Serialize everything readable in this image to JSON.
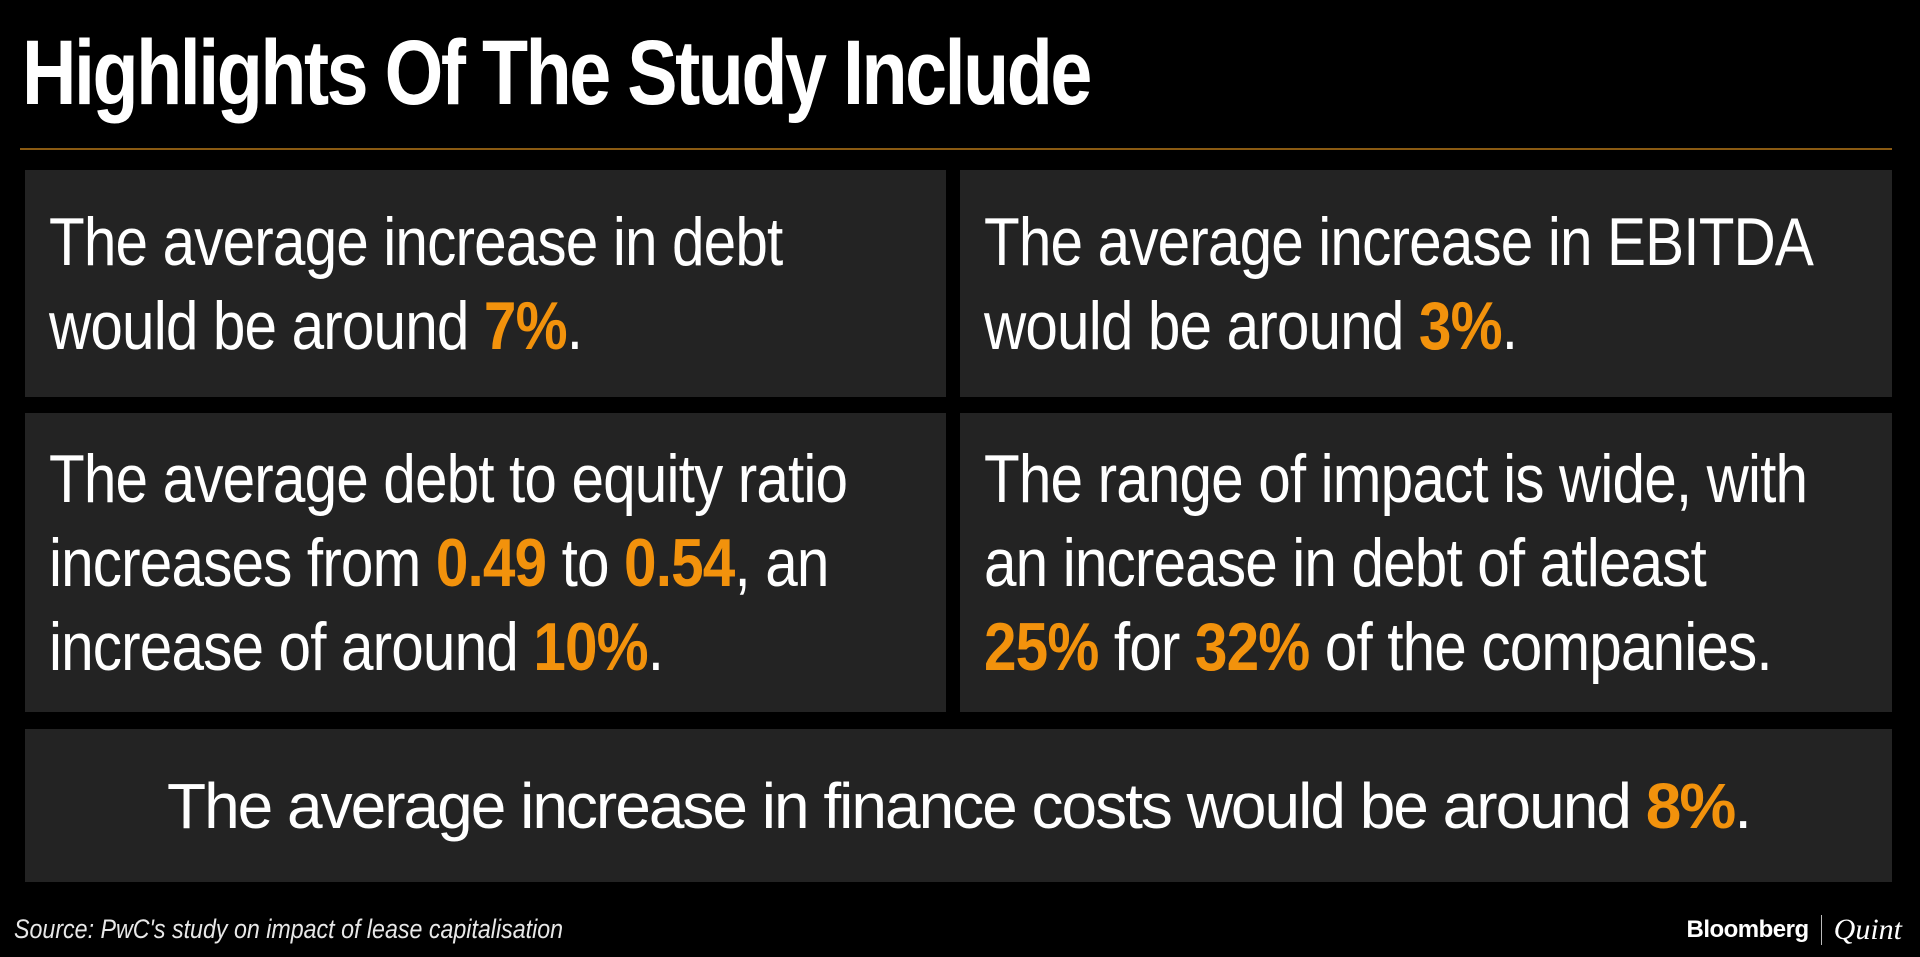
{
  "title": "Highlights Of The Study Include",
  "colors": {
    "background": "#000000",
    "card": "#232323",
    "highlight": "#f2920c",
    "rule": "#8a5a12",
    "text": "#ffffff"
  },
  "cards": [
    {
      "lines": [
        [
          {
            "t": "The average increase in debt"
          }
        ],
        [
          {
            "t": "would be around "
          },
          {
            "t": "7%",
            "hl": true
          },
          {
            "t": "."
          }
        ]
      ]
    },
    {
      "lines": [
        [
          {
            "t": "The average increase in EBITDA"
          }
        ],
        [
          {
            "t": "would be around "
          },
          {
            "t": "3%",
            "hl": true
          },
          {
            "t": "."
          }
        ]
      ]
    },
    {
      "lines": [
        [
          {
            "t": "The average debt to equity ratio"
          }
        ],
        [
          {
            "t": "increases from "
          },
          {
            "t": "0.49",
            "hl": true
          },
          {
            "t": " to "
          },
          {
            "t": "0.54",
            "hl": true
          },
          {
            "t": ", an"
          }
        ],
        [
          {
            "t": "increase of around "
          },
          {
            "t": "10%",
            "hl": true
          },
          {
            "t": "."
          }
        ]
      ]
    },
    {
      "lines": [
        [
          {
            "t": "The range of impact is wide, with"
          }
        ],
        [
          {
            "t": "an increase in debt of atleast"
          }
        ],
        [
          {
            "t": "25%",
            "hl": true
          },
          {
            "t": " for "
          },
          {
            "t": "32%",
            "hl": true
          },
          {
            "t": " of the companies."
          }
        ]
      ]
    },
    {
      "lines": [
        [
          {
            "t": "The average increase in finance costs would be around "
          },
          {
            "t": "8%",
            "hl": true
          },
          {
            "t": "."
          }
        ]
      ]
    }
  ],
  "source": "Source: PwC's study on impact of lease capitalisation",
  "brand": {
    "name1": "Bloomberg",
    "name2": "Quint"
  }
}
